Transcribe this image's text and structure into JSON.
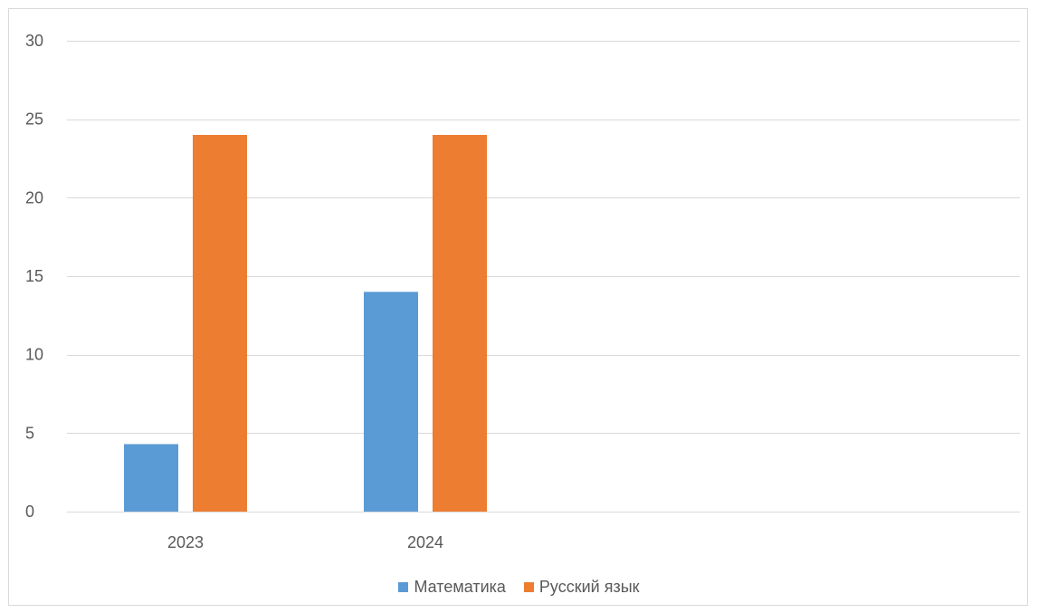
{
  "chart_data": {
    "type": "bar",
    "categories": [
      "2023",
      "2024"
    ],
    "series": [
      {
        "name": "Математика",
        "color": "#5b9bd5",
        "values": [
          4.3,
          14
        ]
      },
      {
        "name": "Русский язык",
        "color": "#ed7d31",
        "values": [
          24,
          24
        ]
      }
    ],
    "title": "",
    "xlabel": "",
    "ylabel": "",
    "ylim": [
      0,
      30
    ],
    "yticks": [
      0,
      5,
      10,
      15,
      20,
      25,
      30
    ],
    "grid": true,
    "legend_position": "bottom"
  }
}
